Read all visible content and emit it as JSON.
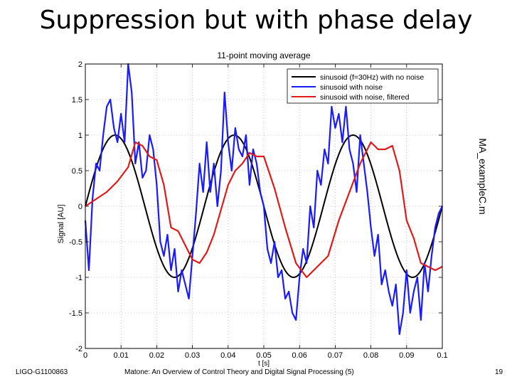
{
  "slide": {
    "title": "Suppression but with phase delay",
    "side_label": "MA_exampleC.m",
    "footer_left": "LIGO-G1100863",
    "footer_center": "Matone: An Overview of Control Theory and Digital Signal Processing (5)",
    "page_number": "19"
  },
  "chart_data": {
    "type": "line",
    "title": "11-point moving average",
    "xlabel": "t [s]",
    "ylabel": "Signal [AU]",
    "xlim": [
      0,
      0.1
    ],
    "ylim": [
      -2,
      2
    ],
    "grid": true,
    "legend_position": "top-right",
    "x_ticks": [
      "0",
      "0.01",
      "0.02",
      "0.03",
      "0.04",
      "0.05",
      "0.06",
      "0.07",
      "0.08",
      "0.09",
      "0.1"
    ],
    "y_ticks": [
      "-2",
      "-1.5",
      "-1",
      "-0.5",
      "0",
      "0.5",
      "1",
      "1.5",
      "2"
    ],
    "series": [
      {
        "name": "sinusoid (f=30Hz) with no noise",
        "color": "#000000",
        "kind": "sine",
        "frequency_hz": 30,
        "amplitude": 1
      },
      {
        "name": "sinusoid with noise",
        "color": "#1a1aff",
        "x": [
          0,
          0.001,
          0.002,
          0.003,
          0.004,
          0.005,
          0.006,
          0.007,
          0.008,
          0.009,
          0.01,
          0.011,
          0.012,
          0.013,
          0.014,
          0.015,
          0.016,
          0.017,
          0.018,
          0.019,
          0.02,
          0.021,
          0.022,
          0.023,
          0.024,
          0.025,
          0.026,
          0.027,
          0.028,
          0.029,
          0.03,
          0.031,
          0.032,
          0.033,
          0.034,
          0.035,
          0.036,
          0.037,
          0.038,
          0.039,
          0.04,
          0.041,
          0.042,
          0.043,
          0.044,
          0.045,
          0.046,
          0.047,
          0.048,
          0.049,
          0.05,
          0.051,
          0.052,
          0.053,
          0.054,
          0.055,
          0.056,
          0.057,
          0.058,
          0.059,
          0.06,
          0.061,
          0.062,
          0.063,
          0.064,
          0.065,
          0.066,
          0.067,
          0.068,
          0.069,
          0.07,
          0.071,
          0.072,
          0.073,
          0.074,
          0.075,
          0.076,
          0.077,
          0.078,
          0.079,
          0.08,
          0.081,
          0.082,
          0.083,
          0.084,
          0.085,
          0.086,
          0.087,
          0.088,
          0.089,
          0.09,
          0.091,
          0.092,
          0.093,
          0.094,
          0.095,
          0.096,
          0.097,
          0.098,
          0.099,
          0.1
        ],
        "values": [
          -0.2,
          -0.9,
          0.1,
          0.6,
          0.5,
          1.0,
          1.4,
          1.5,
          1.1,
          0.9,
          1.3,
          0.9,
          2.0,
          1.6,
          0.6,
          0.9,
          0.4,
          0.5,
          1.0,
          0.8,
          0.3,
          -0.5,
          -0.7,
          -0.4,
          -0.9,
          -0.6,
          -1.2,
          -0.9,
          -1.1,
          -1.3,
          -0.7,
          -0.1,
          0.6,
          0.2,
          0.9,
          0.2,
          0.6,
          0.0,
          0.5,
          1.6,
          0.9,
          0.5,
          1.1,
          0.8,
          0.7,
          1.0,
          0.3,
          0.8,
          0.6,
          0.2,
          0.0,
          -0.6,
          -0.8,
          -0.5,
          -1.0,
          -0.9,
          -1.3,
          -1.2,
          -1.5,
          -1.6,
          -1.0,
          -0.6,
          -0.8,
          0.0,
          -0.3,
          0.5,
          0.3,
          0.8,
          0.6,
          1.4,
          1.1,
          1.3,
          0.9,
          1.4,
          0.8,
          0.6,
          0.2,
          1.0,
          0.6,
          0.2,
          -0.3,
          -0.7,
          -0.4,
          -1.1,
          -0.9,
          -1.2,
          -1.4,
          -1.1,
          -1.8,
          -1.5,
          -0.9,
          -1.5,
          -1.2,
          -1.0,
          -1.6,
          -0.8,
          -1.2,
          -0.7,
          -0.3,
          -0.1,
          0.0
        ]
      },
      {
        "name": "sinusoid with noise, filtered",
        "color": "#e01a1a",
        "x": [
          0.0,
          0.003,
          0.006,
          0.009,
          0.012,
          0.014,
          0.016,
          0.018,
          0.02,
          0.022,
          0.024,
          0.026,
          0.028,
          0.03,
          0.032,
          0.034,
          0.036,
          0.038,
          0.04,
          0.042,
          0.044,
          0.046,
          0.048,
          0.05,
          0.053,
          0.056,
          0.059,
          0.062,
          0.065,
          0.068,
          0.071,
          0.074,
          0.077,
          0.08,
          0.082,
          0.084,
          0.086,
          0.088,
          0.09,
          0.092,
          0.094,
          0.096,
          0.098,
          0.1
        ],
        "values": [
          0.0,
          0.1,
          0.2,
          0.35,
          0.55,
          0.9,
          0.85,
          0.7,
          0.65,
          0.3,
          -0.3,
          -0.35,
          -0.55,
          -0.75,
          -0.8,
          -0.65,
          -0.4,
          -0.05,
          0.3,
          0.5,
          0.6,
          0.75,
          0.7,
          0.7,
          0.25,
          -0.3,
          -0.8,
          -1.0,
          -0.85,
          -0.7,
          -0.2,
          0.2,
          0.6,
          0.9,
          0.8,
          0.8,
          0.85,
          0.5,
          -0.2,
          -0.45,
          -0.8,
          -0.85,
          -0.9,
          -0.85
        ]
      }
    ]
  }
}
